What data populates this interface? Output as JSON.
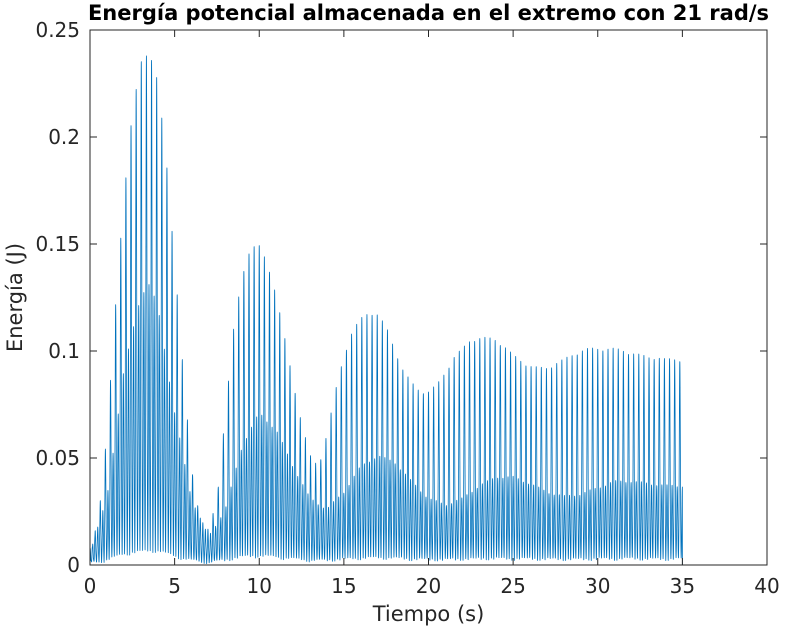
{
  "chart_data": {
    "type": "line",
    "title": "Energía potencial almacenada en el extremo con 21 rad/s",
    "xlabel": "Tiempo (s)",
    "ylabel": "Energía (J)",
    "xlim": [
      0,
      40
    ],
    "ylim": [
      0,
      0.25
    ],
    "xticks": [
      0,
      5,
      10,
      15,
      20,
      25,
      30,
      35,
      40
    ],
    "xtick_labels": [
      "0",
      "5",
      "10",
      "15",
      "20",
      "25",
      "30",
      "35",
      "40"
    ],
    "yticks": [
      0,
      0.05,
      0.1,
      0.15,
      0.2,
      0.25
    ],
    "ytick_labels": [
      "0",
      "0.05",
      "0.1",
      "0.15",
      "0.2",
      "0.25"
    ],
    "grid": false,
    "legend": "none",
    "line_color": "#0072BD",
    "signal_end_time": 35,
    "series": [
      {
        "name": "",
        "description_points": [],
        "peak_envelope": {
          "t": [
            0.0,
            0.5,
            1.0,
            1.5,
            2.0,
            2.5,
            3.0,
            3.5,
            4.0,
            4.5,
            5.0,
            5.5,
            6.0,
            6.5,
            7.0,
            7.5,
            8.0,
            8.5,
            9.0,
            9.5,
            10.0,
            10.5,
            11.0,
            11.5,
            12.0,
            12.5,
            13.0,
            13.5,
            14.0,
            14.5,
            15.0,
            15.5,
            16.0,
            16.5,
            17.0,
            17.5,
            18.0,
            18.5,
            19.0,
            19.5,
            20.0,
            20.5,
            21.0,
            21.5,
            22.0,
            22.5,
            23.0,
            23.5,
            24.0,
            24.5,
            25.0,
            25.5,
            26.0,
            26.5,
            27.0,
            27.5,
            28.0,
            28.5,
            29.0,
            29.5,
            30.0,
            30.5,
            31.0,
            31.5,
            32.0,
            32.5,
            33.0,
            33.5,
            34.0,
            34.5,
            35.0
          ],
          "e": [
            0.007,
            0.02,
            0.06,
            0.12,
            0.17,
            0.21,
            0.235,
            0.238,
            0.225,
            0.19,
            0.14,
            0.09,
            0.045,
            0.02,
            0.015,
            0.03,
            0.07,
            0.11,
            0.135,
            0.147,
            0.148,
            0.14,
            0.125,
            0.105,
            0.085,
            0.065,
            0.05,
            0.045,
            0.06,
            0.08,
            0.097,
            0.108,
            0.114,
            0.117,
            0.116,
            0.11,
            0.1,
            0.09,
            0.084,
            0.08,
            0.08,
            0.083,
            0.089,
            0.096,
            0.1,
            0.104,
            0.105,
            0.105,
            0.104,
            0.101,
            0.097,
            0.094,
            0.092,
            0.091,
            0.091,
            0.093,
            0.095,
            0.097,
            0.099,
            0.1,
            0.1,
            0.1,
            0.1,
            0.099,
            0.098,
            0.097,
            0.096,
            0.096,
            0.095,
            0.095,
            0.095
          ]
        },
        "secondary_envelope": {
          "t": [
            0.0,
            1.0,
            2.0,
            3.0,
            3.5,
            4.0,
            5.0,
            6.0,
            7.0,
            8.0,
            9.0,
            10.0,
            11.0,
            12.0,
            13.0,
            14.0,
            15.0,
            16.0,
            17.0,
            18.0,
            19.0,
            20.0,
            21.0,
            22.0,
            23.0,
            24.0,
            25.0,
            26.0,
            27.0,
            28.0,
            29.0,
            30.0,
            31.0,
            32.0,
            33.0,
            34.0,
            35.0
          ],
          "e": [
            0.005,
            0.03,
            0.09,
            0.125,
            0.13,
            0.12,
            0.07,
            0.03,
            0.012,
            0.025,
            0.055,
            0.07,
            0.062,
            0.045,
            0.03,
            0.025,
            0.033,
            0.045,
            0.05,
            0.047,
            0.038,
            0.03,
            0.027,
            0.03,
            0.036,
            0.04,
            0.04,
            0.037,
            0.033,
            0.031,
            0.032,
            0.035,
            0.038,
            0.038,
            0.037,
            0.036,
            0.036
          ]
        },
        "oscillation_frequency_hz": 3.3
      }
    ]
  }
}
